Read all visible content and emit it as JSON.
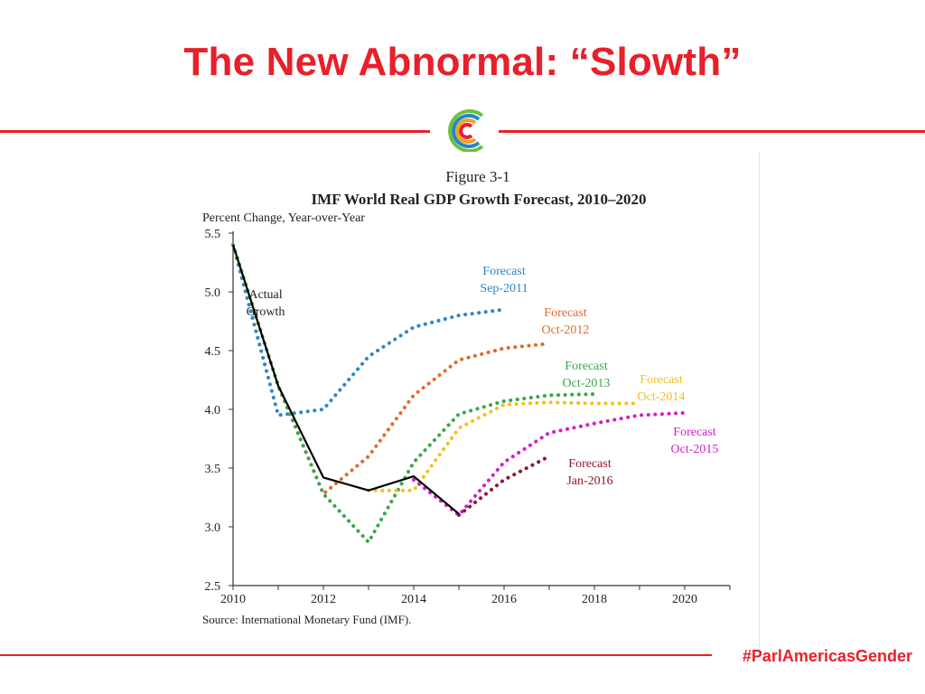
{
  "slide": {
    "title": "The New Abnormal: “Slowth”",
    "hashtag": "#ParlAmericasGender",
    "accent_color": "#e8202a",
    "logo_icon": "concentric-arcs-logo-icon"
  },
  "chart_data": {
    "type": "line",
    "figure_label": "Figure 3-1",
    "title": "IMF World Real GDP Growth Forecast, 2010–2020",
    "ylabel": "Percent Change, Year-over-Year",
    "xlabel": "",
    "source": "Source: International Monetary Fund (IMF).",
    "xlim": [
      2010,
      2021
    ],
    "ylim": [
      2.5,
      5.5
    ],
    "x_ticks": [
      2010,
      2012,
      2014,
      2016,
      2018,
      2020
    ],
    "y_ticks": [
      2.5,
      3.0,
      3.5,
      4.0,
      4.5,
      5.0,
      5.5
    ],
    "y_tick_labels": [
      "2.5",
      "3.0",
      "3.5",
      "4.0",
      "4.5",
      "5.0",
      "5.5"
    ],
    "x_tick_labels": [
      "2010",
      "2012",
      "2014",
      "2016",
      "2018",
      "2020"
    ],
    "grid": false,
    "series": [
      {
        "name": "Actual Growth",
        "label_lines": [
          "Actual",
          "Growth"
        ],
        "color": "#000000",
        "style": "solid",
        "x": [
          2010,
          2011,
          2012,
          2013,
          2014,
          2015
        ],
        "y": [
          5.4,
          4.2,
          3.42,
          3.31,
          3.43,
          3.11
        ]
      },
      {
        "name": "Forecast Sep-2011",
        "label_lines": [
          "Forecast",
          "Sep-2011"
        ],
        "color": "#2e86c8",
        "style": "dotted",
        "x": [
          2010,
          2011,
          2012,
          2013,
          2014,
          2015,
          2016
        ],
        "y": [
          5.4,
          3.95,
          4.0,
          4.45,
          4.7,
          4.8,
          4.85
        ]
      },
      {
        "name": "Forecast Oct-2012",
        "label_lines": [
          "Forecast",
          "Oct-2012"
        ],
        "color": "#e06a2c",
        "style": "dotted",
        "x": [
          2010,
          2011,
          2012,
          2013,
          2014,
          2015,
          2016,
          2017
        ],
        "y": [
          5.4,
          4.2,
          3.28,
          3.6,
          4.12,
          4.42,
          4.52,
          4.56
        ]
      },
      {
        "name": "Forecast Oct-2013",
        "label_lines": [
          "Forecast",
          "Oct-2013"
        ],
        "color": "#3aa64a",
        "style": "dotted",
        "x": [
          2010,
          2011,
          2012,
          2013,
          2014,
          2015,
          2016,
          2017,
          2018
        ],
        "y": [
          5.4,
          4.2,
          3.28,
          2.87,
          3.55,
          3.96,
          4.07,
          4.12,
          4.13
        ]
      },
      {
        "name": "Forecast Oct-2014",
        "label_lines": [
          "Forecast",
          "Oct-2014"
        ],
        "color": "#f2c01e",
        "style": "dotted",
        "x": [
          2013,
          2014,
          2015,
          2016,
          2017,
          2018,
          2019
        ],
        "y": [
          3.31,
          3.31,
          3.84,
          4.04,
          4.06,
          4.05,
          4.05
        ]
      },
      {
        "name": "Forecast Oct-2015",
        "label_lines": [
          "Forecast",
          "Oct-2015"
        ],
        "color": "#d21fc8",
        "style": "dotted",
        "x": [
          2014,
          2015,
          2016,
          2017,
          2018,
          2019,
          2020
        ],
        "y": [
          3.4,
          3.1,
          3.55,
          3.8,
          3.88,
          3.95,
          3.97
        ]
      },
      {
        "name": "Forecast Jan-2016",
        "label_lines": [
          "Forecast",
          "Jan-2016"
        ],
        "color": "#8b1a2a",
        "style": "dotted",
        "x": [
          2015,
          2016,
          2017
        ],
        "y": [
          3.1,
          3.4,
          3.6
        ]
      }
    ]
  }
}
